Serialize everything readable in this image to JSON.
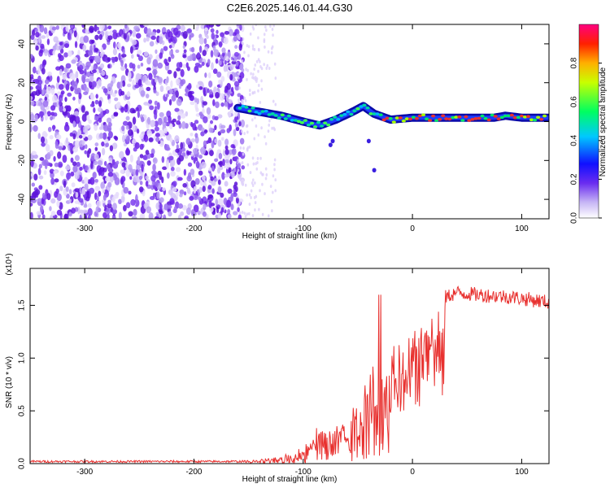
{
  "title": "C2E6.2025.146.01.44.G30",
  "chart_data": [
    {
      "type": "heatmap",
      "xlabel": "Height of straight line (km)",
      "ylabel": "Frequency (Hz)",
      "xlim": [
        -350,
        125
      ],
      "ylim": [
        -50,
        50
      ],
      "xticks": [
        -300,
        -200,
        -100,
        0,
        100
      ],
      "yticks": [
        -40,
        -20,
        0,
        20,
        40
      ],
      "colorbar": {
        "label": "Normalized spectral amplitude",
        "range": [
          0,
          1
        ],
        "ticks": [
          "0.0",
          "0.2",
          "0.4",
          "0.6",
          "0.8"
        ]
      },
      "noise_region_x": [
        -350,
        -160
      ],
      "ridge": [
        {
          "x": -160,
          "y": 7
        },
        {
          "x": -140,
          "y": 5
        },
        {
          "x": -120,
          "y": 3
        },
        {
          "x": -100,
          "y": 0
        },
        {
          "x": -85,
          "y": -2
        },
        {
          "x": -70,
          "y": 1
        },
        {
          "x": -55,
          "y": 5
        },
        {
          "x": -45,
          "y": 8
        },
        {
          "x": -35,
          "y": 4
        },
        {
          "x": -20,
          "y": 1
        },
        {
          "x": 0,
          "y": 2
        },
        {
          "x": 25,
          "y": 2
        },
        {
          "x": 50,
          "y": 2
        },
        {
          "x": 75,
          "y": 2
        },
        {
          "x": 85,
          "y": 3
        },
        {
          "x": 100,
          "y": 2
        },
        {
          "x": 125,
          "y": 2
        }
      ]
    },
    {
      "type": "line",
      "xlabel": "Height of straight line (km)",
      "ylabel": "SNR (10 * v/v)",
      "y_multiplier": "(x10⁴)",
      "xlim": [
        -350,
        125
      ],
      "ylim": [
        0,
        1.85
      ],
      "xticks": [
        -300,
        -200,
        -100,
        0,
        100
      ],
      "yticks": [
        "0.0",
        "0.5",
        "1.0",
        "1.5"
      ],
      "color": "#e8312f",
      "envelope": [
        {
          "x": -350,
          "y": 0.02
        },
        {
          "x": -150,
          "y": 0.02
        },
        {
          "x": -130,
          "y": 0.05
        },
        {
          "x": -100,
          "y": 0.12
        },
        {
          "x": -85,
          "y": 0.3
        },
        {
          "x": -70,
          "y": 0.35
        },
        {
          "x": -55,
          "y": 0.45
        },
        {
          "x": -45,
          "y": 0.75
        },
        {
          "x": -35,
          "y": 0.95
        },
        {
          "x": -20,
          "y": 1.1
        },
        {
          "x": -5,
          "y": 1.2
        },
        {
          "x": 10,
          "y": 1.35
        },
        {
          "x": 25,
          "y": 1.55
        },
        {
          "x": 40,
          "y": 1.62
        },
        {
          "x": 60,
          "y": 1.6
        },
        {
          "x": 90,
          "y": 1.58
        },
        {
          "x": 125,
          "y": 1.53
        }
      ]
    }
  ]
}
